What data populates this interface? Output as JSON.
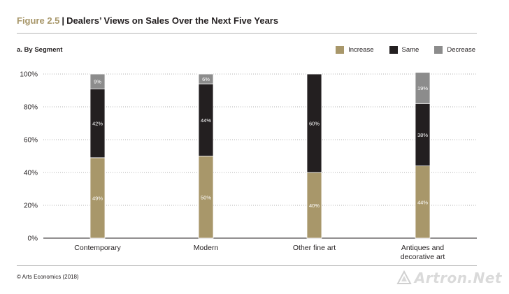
{
  "figure": {
    "number": "Figure 2.5",
    "title": "Dealers’ Views on Sales Over the Next Five Years",
    "subtitle": "a. By Segment",
    "source": "© Arts Economics (2018)",
    "watermark": "Artron.Net"
  },
  "colors": {
    "increase": "#a8976a",
    "same": "#231f20",
    "decrease": "#8c8c8c",
    "accent": "#a8976a"
  },
  "chart_data": {
    "type": "bar",
    "stacked": true,
    "categories": [
      [
        "Contemporary"
      ],
      [
        "Modern"
      ],
      [
        "Other fine art"
      ],
      [
        "Antiques and",
        "decorative art"
      ]
    ],
    "series": [
      {
        "name": "Increase",
        "key": "increase",
        "values": [
          49,
          50,
          40,
          44
        ],
        "labels": [
          "49%",
          "50%",
          "40%",
          "44%"
        ]
      },
      {
        "name": "Same",
        "key": "same",
        "values": [
          42,
          44,
          60,
          38
        ],
        "labels": [
          "42%",
          "44%",
          "60%",
          "38%"
        ]
      },
      {
        "name": "Decrease",
        "key": "decrease",
        "values": [
          9,
          6,
          0,
          19
        ],
        "labels": [
          "9%",
          "6%",
          "",
          "19%"
        ]
      }
    ],
    "yticks": [
      "0%",
      "20%",
      "40%",
      "60%",
      "80%",
      "100%"
    ],
    "ylim": [
      0,
      100
    ],
    "grid": true,
    "legend_position": "top-right"
  }
}
